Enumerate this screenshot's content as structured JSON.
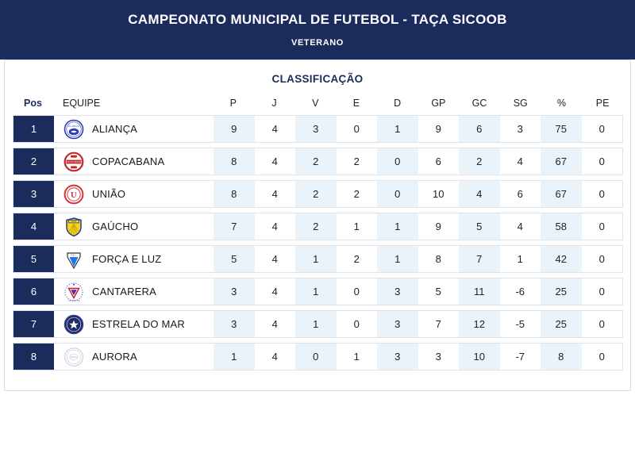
{
  "header": {
    "title": "CAMPEONATO MUNICIPAL DE FUTEBOL - TAÇA SICOOB",
    "subtitle": "VETERANO"
  },
  "table": {
    "section_title": "CLASSIFICAÇÃO",
    "columns": [
      "Pos",
      "EQUIPE",
      "P",
      "J",
      "V",
      "E",
      "D",
      "GP",
      "GC",
      "SG",
      "%",
      "PE"
    ],
    "rows": [
      {
        "pos": "1",
        "team": "ALIANÇA",
        "badge": "alianca-badge",
        "stats": [
          "9",
          "4",
          "3",
          "0",
          "1",
          "9",
          "6",
          "3",
          "75",
          "0"
        ]
      },
      {
        "pos": "2",
        "team": "COPACABANA",
        "badge": "copacabana-badge",
        "stats": [
          "8",
          "4",
          "2",
          "2",
          "0",
          "6",
          "2",
          "4",
          "67",
          "0"
        ]
      },
      {
        "pos": "3",
        "team": "UNIÃO",
        "badge": "uniao-badge",
        "stats": [
          "8",
          "4",
          "2",
          "2",
          "0",
          "10",
          "4",
          "6",
          "67",
          "0"
        ]
      },
      {
        "pos": "4",
        "team": "GAÚCHO",
        "badge": "gaucho-badge",
        "stats": [
          "7",
          "4",
          "2",
          "1",
          "1",
          "9",
          "5",
          "4",
          "58",
          "0"
        ]
      },
      {
        "pos": "5",
        "team": "FORÇA E LUZ",
        "badge": "forca-e-luz-badge",
        "stats": [
          "5",
          "4",
          "1",
          "2",
          "1",
          "8",
          "7",
          "1",
          "42",
          "0"
        ]
      },
      {
        "pos": "6",
        "team": "CANTARERA",
        "badge": "cantarera-badge",
        "stats": [
          "3",
          "4",
          "1",
          "0",
          "3",
          "5",
          "11",
          "-6",
          "25",
          "0"
        ]
      },
      {
        "pos": "7",
        "team": "ESTRELA DO MAR",
        "badge": "estrela-do-mar-badge",
        "stats": [
          "3",
          "4",
          "1",
          "0",
          "3",
          "7",
          "12",
          "-5",
          "25",
          "0"
        ]
      },
      {
        "pos": "8",
        "team": "AURORA",
        "badge": "aurora-badge",
        "stats": [
          "1",
          "4",
          "0",
          "1",
          "3",
          "3",
          "10",
          "-7",
          "8",
          "0"
        ]
      }
    ]
  },
  "colors": {
    "header_bg": "#1b2b5c",
    "position_cell_bg": "#1b2b5c",
    "section_title_color": "#1b2b5c",
    "accent_column_bg": "#eaf3f9",
    "row_border": "#dfe3e8"
  }
}
